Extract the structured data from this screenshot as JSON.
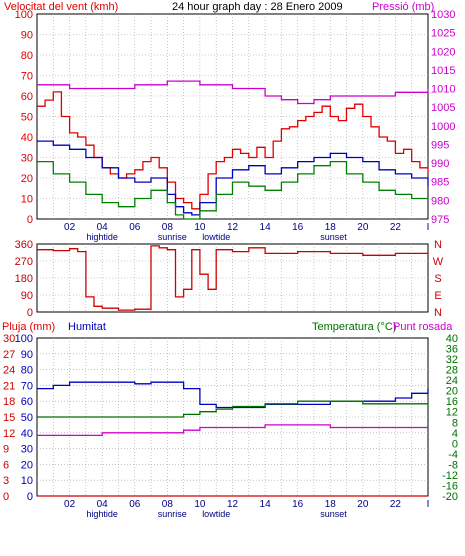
{
  "header": {
    "left_label": "Velocitat del vent (kmh)",
    "center_label": "24 hour graph day : 28 Enero 2009",
    "right_label": "Pressió (mb)"
  },
  "colors": {
    "wind_speed": "#e00000",
    "wind_avg": "#0000c0",
    "wind_low": "#008000",
    "pressure": "#cc00cc",
    "direction": "#d00000",
    "humidity": "#0000c0",
    "temperature": "#007000",
    "dew_point": "#cc00cc",
    "rain": "#d00000",
    "grid": "#a0a0a0",
    "frame": "#000000"
  },
  "x_axis": {
    "tick_labels": [
      "02",
      "04",
      "06",
      "08",
      "10",
      "12",
      "14",
      "16",
      "18",
      "20",
      "22",
      "I"
    ],
    "events": [
      {
        "label": "hightide",
        "hour": 4.0
      },
      {
        "label": "sunrise",
        "hour": 8.3
      },
      {
        "label": "lowtide",
        "hour": 11.0
      },
      {
        "label": "sunset",
        "hour": 18.2
      }
    ]
  },
  "chart_data": [
    {
      "type": "line",
      "title": "24 hour graph day : 28 Enero 2009",
      "x_range_hours": [
        0,
        24
      ],
      "y_left": {
        "label": "Velocitat del vent (kmh)",
        "ticks": [
          0,
          10,
          20,
          30,
          40,
          50,
          60,
          70,
          80,
          90,
          100
        ],
        "range": [
          0,
          100
        ]
      },
      "y_right": {
        "label": "Pressió (mb)",
        "ticks": [
          975,
          980,
          985,
          990,
          995,
          1000,
          1005,
          1010,
          1015,
          1020,
          1025,
          1030
        ],
        "range": [
          975,
          1030
        ]
      },
      "grid": true,
      "series": [
        {
          "key": "pressure",
          "axis": "right",
          "x": [
            0,
            1,
            2,
            4,
            6,
            8,
            9,
            10,
            12,
            14,
            15,
            16,
            17,
            18,
            20,
            22,
            24
          ],
          "values": [
            1011,
            1011,
            1010,
            1010,
            1011,
            1012,
            1012,
            1011,
            1010,
            1008,
            1007,
            1006,
            1007,
            1008,
            1008,
            1009,
            1010
          ]
        },
        {
          "key": "wind_speed",
          "axis": "left",
          "x": [
            0,
            0.5,
            1,
            1.5,
            2,
            2.5,
            3,
            3.5,
            4,
            4.5,
            5,
            5.5,
            6,
            6.5,
            7,
            7.5,
            8,
            8.5,
            9,
            9.5,
            10,
            10.5,
            11,
            11.5,
            12,
            12.5,
            13,
            13.5,
            14,
            14.5,
            15,
            15.5,
            16,
            16.5,
            17,
            17.5,
            18,
            18.5,
            19,
            19.5,
            20,
            20.5,
            21,
            21.5,
            22,
            22.5,
            23,
            23.5,
            24
          ],
          "values": [
            55,
            58,
            62,
            50,
            42,
            40,
            36,
            30,
            25,
            22,
            20,
            22,
            24,
            28,
            30,
            25,
            18,
            10,
            8,
            5,
            12,
            22,
            28,
            30,
            34,
            32,
            30,
            35,
            30,
            38,
            44,
            45,
            48,
            50,
            52,
            55,
            50,
            48,
            54,
            56,
            50,
            45,
            40,
            38,
            32,
            34,
            28,
            25,
            22
          ]
        },
        {
          "key": "wind_avg",
          "axis": "left",
          "x": [
            0,
            1,
            2,
            3,
            4,
            5,
            6,
            7,
            8,
            8.5,
            9,
            9.5,
            10,
            11,
            12,
            13,
            14,
            15,
            16,
            17,
            18,
            19,
            20,
            21,
            22,
            23,
            24
          ],
          "values": [
            38,
            36,
            34,
            30,
            25,
            20,
            18,
            20,
            12,
            6,
            3,
            2,
            8,
            20,
            24,
            26,
            22,
            25,
            28,
            30,
            32,
            30,
            28,
            24,
            22,
            20,
            16
          ]
        },
        {
          "key": "wind_low",
          "axis": "left",
          "x": [
            0,
            1,
            2,
            3,
            4,
            5,
            6,
            7,
            8,
            8.5,
            9,
            9.5,
            10,
            11,
            12,
            13,
            14,
            15,
            16,
            17,
            18,
            19,
            20,
            21,
            22,
            23,
            24
          ],
          "values": [
            28,
            22,
            18,
            12,
            8,
            6,
            10,
            14,
            8,
            2,
            0,
            0,
            4,
            12,
            18,
            16,
            14,
            18,
            22,
            26,
            28,
            22,
            18,
            14,
            12,
            10,
            10
          ]
        }
      ]
    },
    {
      "type": "line",
      "title": "",
      "x_range_hours": [
        0,
        24
      ],
      "y_left": {
        "ticks": [
          0,
          90,
          180,
          270,
          360
        ],
        "range": [
          0,
          360
        ]
      },
      "y_right": {
        "ticks": [
          "N",
          "W",
          "S",
          "E",
          "N"
        ]
      },
      "grid": true,
      "series": [
        {
          "key": "direction",
          "x": [
            0,
            1,
            2,
            2.5,
            3,
            3.5,
            4,
            5,
            6,
            7,
            7.5,
            8,
            8.5,
            9,
            9.5,
            10,
            10.5,
            11,
            12,
            13,
            14,
            16,
            18,
            20,
            22,
            24
          ],
          "values": [
            330,
            325,
            335,
            320,
            80,
            30,
            20,
            10,
            15,
            350,
            340,
            330,
            80,
            120,
            330,
            200,
            120,
            330,
            320,
            340,
            310,
            320,
            310,
            300,
            310,
            320
          ]
        }
      ]
    },
    {
      "type": "line",
      "title": "",
      "x_range_hours": [
        0,
        24
      ],
      "y_axes": [
        {
          "label": "Pluja (mm)",
          "ticks": [
            0,
            3,
            6,
            9,
            12,
            15,
            18,
            21,
            24,
            27,
            30
          ]
        },
        {
          "label": "Humitat",
          "ticks": [
            0,
            10,
            20,
            30,
            40,
            50,
            60,
            70,
            80,
            90,
            100
          ]
        },
        {
          "label": "Temperatura (°C)",
          "ticks": [
            -20,
            -16,
            -12,
            -8,
            -4,
            0,
            4,
            8,
            12,
            16,
            20,
            24,
            28,
            32,
            36,
            40
          ]
        },
        {
          "label": "Punt rosada",
          "ticks": []
        }
      ],
      "grid": true,
      "series": [
        {
          "key": "humidity",
          "axis": "Humitat",
          "x": [
            0,
            1,
            2,
            4,
            6,
            7,
            8,
            9,
            10,
            11,
            12,
            14,
            16,
            18,
            20,
            22,
            23,
            24
          ],
          "values": [
            68,
            70,
            72,
            72,
            71,
            72,
            72,
            68,
            58,
            56,
            56,
            58,
            58,
            60,
            60,
            62,
            65,
            68
          ]
        },
        {
          "key": "temperature",
          "axis": "Temperatura (°C)",
          "x": [
            0,
            2,
            4,
            6,
            7,
            8,
            9,
            10,
            11,
            12,
            14,
            16,
            18,
            20,
            22,
            24
          ],
          "values": [
            10,
            10,
            10,
            10,
            10,
            10,
            11,
            12,
            13,
            14,
            15,
            16,
            16,
            15,
            15,
            14
          ]
        },
        {
          "key": "dew_point",
          "axis": "Temperatura (°C)",
          "x": [
            0,
            1,
            2,
            4,
            6,
            8,
            9,
            10,
            12,
            14,
            16,
            18,
            20,
            22,
            24
          ],
          "values": [
            3,
            3,
            3,
            4,
            4,
            4,
            5,
            6,
            6,
            7,
            7,
            6,
            6,
            6,
            6
          ]
        },
        {
          "key": "rain",
          "axis": "Pluja (mm)",
          "x": [
            0,
            24
          ],
          "values": [
            0,
            0
          ]
        }
      ]
    }
  ]
}
